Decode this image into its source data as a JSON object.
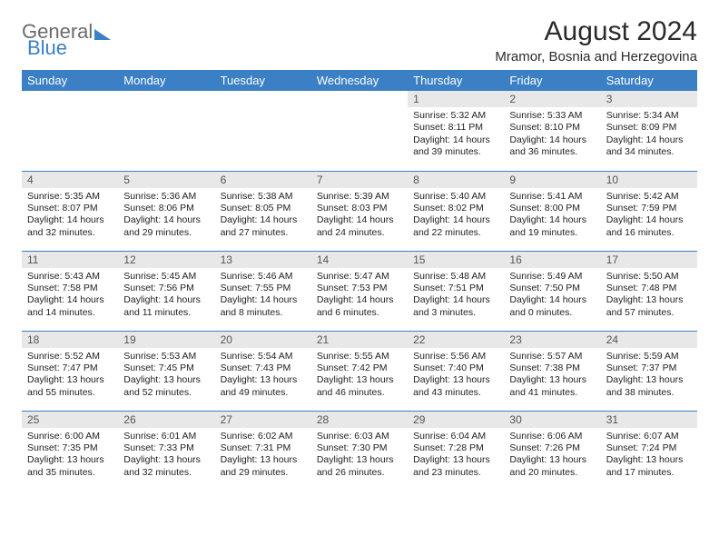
{
  "brand": {
    "part1": "General",
    "part2": "Blue"
  },
  "title": "August 2024",
  "location": "Mramor, Bosnia and Herzegovina",
  "colors": {
    "header_bg": "#3b7fc4",
    "header_text": "#ffffff",
    "daynum_bg": "#e8e8e8",
    "daynum_text": "#555555",
    "rule": "#3b7fc4",
    "page_bg": "#ffffff",
    "body_text": "#222222"
  },
  "day_headers": [
    "Sunday",
    "Monday",
    "Tuesday",
    "Wednesday",
    "Thursday",
    "Friday",
    "Saturday"
  ],
  "weeks": [
    [
      null,
      null,
      null,
      null,
      {
        "n": "1",
        "sr": "5:32 AM",
        "ss": "8:11 PM",
        "dl": "14 hours and 39 minutes."
      },
      {
        "n": "2",
        "sr": "5:33 AM",
        "ss": "8:10 PM",
        "dl": "14 hours and 36 minutes."
      },
      {
        "n": "3",
        "sr": "5:34 AM",
        "ss": "8:09 PM",
        "dl": "14 hours and 34 minutes."
      }
    ],
    [
      {
        "n": "4",
        "sr": "5:35 AM",
        "ss": "8:07 PM",
        "dl": "14 hours and 32 minutes."
      },
      {
        "n": "5",
        "sr": "5:36 AM",
        "ss": "8:06 PM",
        "dl": "14 hours and 29 minutes."
      },
      {
        "n": "6",
        "sr": "5:38 AM",
        "ss": "8:05 PM",
        "dl": "14 hours and 27 minutes."
      },
      {
        "n": "7",
        "sr": "5:39 AM",
        "ss": "8:03 PM",
        "dl": "14 hours and 24 minutes."
      },
      {
        "n": "8",
        "sr": "5:40 AM",
        "ss": "8:02 PM",
        "dl": "14 hours and 22 minutes."
      },
      {
        "n": "9",
        "sr": "5:41 AM",
        "ss": "8:00 PM",
        "dl": "14 hours and 19 minutes."
      },
      {
        "n": "10",
        "sr": "5:42 AM",
        "ss": "7:59 PM",
        "dl": "14 hours and 16 minutes."
      }
    ],
    [
      {
        "n": "11",
        "sr": "5:43 AM",
        "ss": "7:58 PM",
        "dl": "14 hours and 14 minutes."
      },
      {
        "n": "12",
        "sr": "5:45 AM",
        "ss": "7:56 PM",
        "dl": "14 hours and 11 minutes."
      },
      {
        "n": "13",
        "sr": "5:46 AM",
        "ss": "7:55 PM",
        "dl": "14 hours and 8 minutes."
      },
      {
        "n": "14",
        "sr": "5:47 AM",
        "ss": "7:53 PM",
        "dl": "14 hours and 6 minutes."
      },
      {
        "n": "15",
        "sr": "5:48 AM",
        "ss": "7:51 PM",
        "dl": "14 hours and 3 minutes."
      },
      {
        "n": "16",
        "sr": "5:49 AM",
        "ss": "7:50 PM",
        "dl": "14 hours and 0 minutes."
      },
      {
        "n": "17",
        "sr": "5:50 AM",
        "ss": "7:48 PM",
        "dl": "13 hours and 57 minutes."
      }
    ],
    [
      {
        "n": "18",
        "sr": "5:52 AM",
        "ss": "7:47 PM",
        "dl": "13 hours and 55 minutes."
      },
      {
        "n": "19",
        "sr": "5:53 AM",
        "ss": "7:45 PM",
        "dl": "13 hours and 52 minutes."
      },
      {
        "n": "20",
        "sr": "5:54 AM",
        "ss": "7:43 PM",
        "dl": "13 hours and 49 minutes."
      },
      {
        "n": "21",
        "sr": "5:55 AM",
        "ss": "7:42 PM",
        "dl": "13 hours and 46 minutes."
      },
      {
        "n": "22",
        "sr": "5:56 AM",
        "ss": "7:40 PM",
        "dl": "13 hours and 43 minutes."
      },
      {
        "n": "23",
        "sr": "5:57 AM",
        "ss": "7:38 PM",
        "dl": "13 hours and 41 minutes."
      },
      {
        "n": "24",
        "sr": "5:59 AM",
        "ss": "7:37 PM",
        "dl": "13 hours and 38 minutes."
      }
    ],
    [
      {
        "n": "25",
        "sr": "6:00 AM",
        "ss": "7:35 PM",
        "dl": "13 hours and 35 minutes."
      },
      {
        "n": "26",
        "sr": "6:01 AM",
        "ss": "7:33 PM",
        "dl": "13 hours and 32 minutes."
      },
      {
        "n": "27",
        "sr": "6:02 AM",
        "ss": "7:31 PM",
        "dl": "13 hours and 29 minutes."
      },
      {
        "n": "28",
        "sr": "6:03 AM",
        "ss": "7:30 PM",
        "dl": "13 hours and 26 minutes."
      },
      {
        "n": "29",
        "sr": "6:04 AM",
        "ss": "7:28 PM",
        "dl": "13 hours and 23 minutes."
      },
      {
        "n": "30",
        "sr": "6:06 AM",
        "ss": "7:26 PM",
        "dl": "13 hours and 20 minutes."
      },
      {
        "n": "31",
        "sr": "6:07 AM",
        "ss": "7:24 PM",
        "dl": "13 hours and 17 minutes."
      }
    ]
  ],
  "labels": {
    "sunrise": "Sunrise: ",
    "sunset": "Sunset: ",
    "daylight": "Daylight: "
  }
}
